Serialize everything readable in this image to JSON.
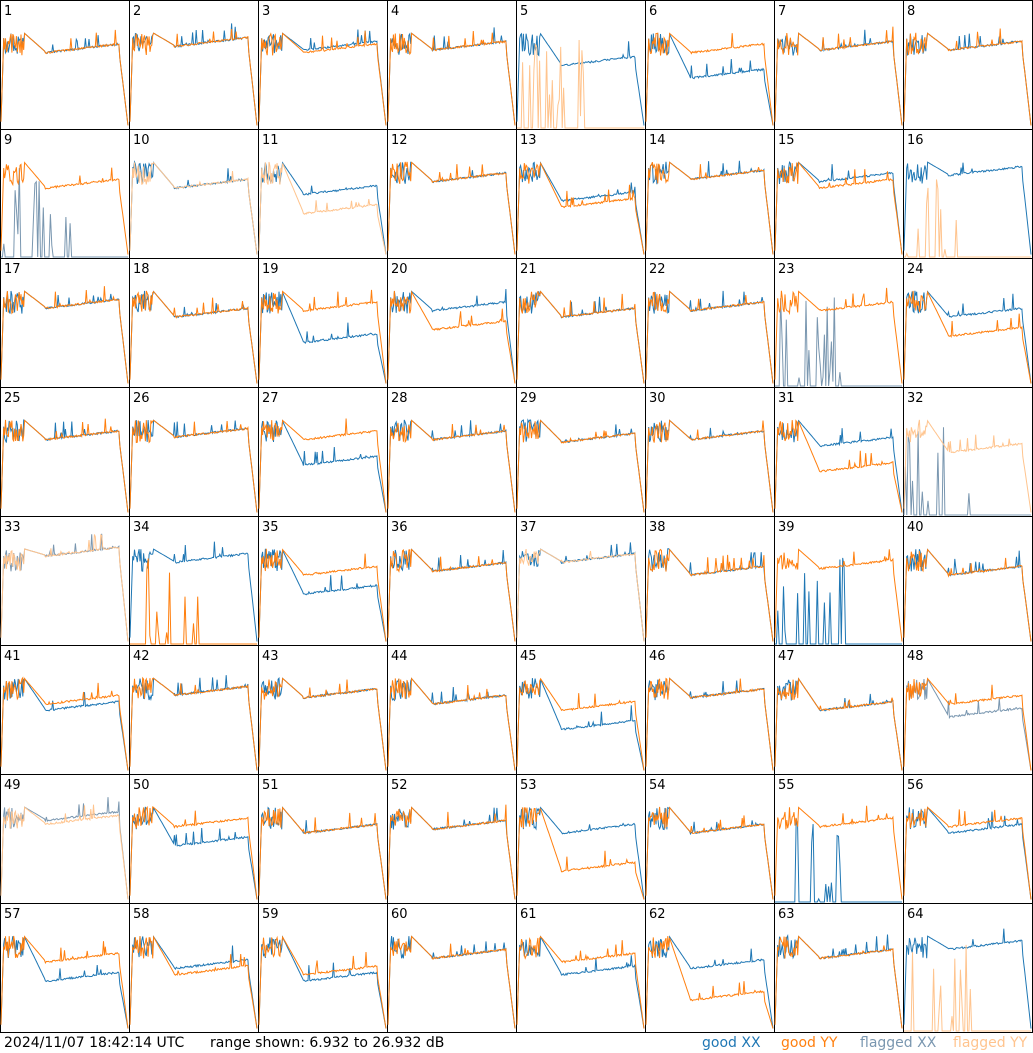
{
  "footer": {
    "timestamp": "2024/11/07 18:42:14 UTC",
    "range": "range shown: 6.932 to 26.932 dB",
    "legend": {
      "good_xx": "good XX",
      "good_yy": "good YY",
      "flagged_xx": "flagged XX",
      "flagged_yy": "flagged YY"
    }
  },
  "colors": {
    "good_xx": "#1f77b4",
    "good_yy": "#ff7f0e",
    "flagged_xx": "#7a97b0",
    "flagged_yy": "#ffc48e"
  },
  "chart_data": {
    "type": "line",
    "grid": {
      "rows": 8,
      "cols": 8
    },
    "ylim": [
      6.932,
      26.932
    ],
    "yunit": "dB",
    "series_names": [
      "good XX",
      "good YY",
      "flagged XX",
      "flagged YY"
    ],
    "panels": [
      {
        "label": "1",
        "xx": "good",
        "yy": "good",
        "xx_level": 0.4,
        "yy_level": 0.4
      },
      {
        "label": "2",
        "xx": "good",
        "yy": "good",
        "xx_level": 0.35,
        "yy_level": 0.35
      },
      {
        "label": "3",
        "xx": "good",
        "yy": "good",
        "xx_level": 0.38,
        "yy_level": 0.4
      },
      {
        "label": "4",
        "xx": "good",
        "yy": "good",
        "xx_level": 0.38,
        "yy_level": 0.38
      },
      {
        "label": "5",
        "xx": "good",
        "yy": "flagged",
        "xx_level": 0.5,
        "yy_level": 0.0
      },
      {
        "label": "6",
        "xx": "good",
        "yy": "good",
        "xx_level": 0.6,
        "yy_level": 0.4
      },
      {
        "label": "7",
        "xx": "good",
        "yy": "good",
        "xx_level": 0.38,
        "yy_level": 0.38
      },
      {
        "label": "8",
        "xx": "good",
        "yy": "good",
        "xx_level": 0.38,
        "yy_level": 0.38
      },
      {
        "label": "9",
        "xx": "flagged",
        "yy": "good",
        "xx_level": 0.0,
        "yy_level": 0.45
      },
      {
        "label": "10",
        "xx": "good",
        "yy": "flagged",
        "xx_level": 0.45,
        "yy_level": 0.45
      },
      {
        "label": "11",
        "xx": "good",
        "yy": "flagged",
        "xx_level": 0.5,
        "yy_level": 0.65
      },
      {
        "label": "12",
        "xx": "good",
        "yy": "good",
        "xx_level": 0.4,
        "yy_level": 0.4
      },
      {
        "label": "13",
        "xx": "good",
        "yy": "good",
        "xx_level": 0.55,
        "yy_level": 0.6
      },
      {
        "label": "14",
        "xx": "good",
        "yy": "good",
        "xx_level": 0.38,
        "yy_level": 0.38
      },
      {
        "label": "15",
        "xx": "good",
        "yy": "good",
        "xx_level": 0.4,
        "yy_level": 0.45
      },
      {
        "label": "16",
        "xx": "good",
        "yy": "flagged",
        "xx_level": 0.35,
        "yy_level": 0.0
      },
      {
        "label": "17",
        "xx": "good",
        "yy": "good",
        "xx_level": 0.38,
        "yy_level": 0.38
      },
      {
        "label": "18",
        "xx": "good",
        "yy": "good",
        "xx_level": 0.45,
        "yy_level": 0.45
      },
      {
        "label": "19",
        "xx": "good",
        "yy": "good",
        "xx_level": 0.65,
        "yy_level": 0.4
      },
      {
        "label": "20",
        "xx": "good",
        "yy": "good",
        "xx_level": 0.4,
        "yy_level": 0.55
      },
      {
        "label": "21",
        "xx": "good",
        "yy": "good",
        "xx_level": 0.45,
        "yy_level": 0.45
      },
      {
        "label": "22",
        "xx": "good",
        "yy": "good",
        "xx_level": 0.4,
        "yy_level": 0.4
      },
      {
        "label": "23",
        "xx": "flagged",
        "yy": "good",
        "xx_level": 0.0,
        "yy_level": 0.4
      },
      {
        "label": "24",
        "xx": "good",
        "yy": "good",
        "xx_level": 0.45,
        "yy_level": 0.6
      },
      {
        "label": "25",
        "xx": "good",
        "yy": "good",
        "xx_level": 0.4,
        "yy_level": 0.4
      },
      {
        "label": "26",
        "xx": "good",
        "yy": "good",
        "xx_level": 0.38,
        "yy_level": 0.38
      },
      {
        "label": "27",
        "xx": "good",
        "yy": "good",
        "xx_level": 0.6,
        "yy_level": 0.4
      },
      {
        "label": "28",
        "xx": "good",
        "yy": "good",
        "xx_level": 0.4,
        "yy_level": 0.4
      },
      {
        "label": "29",
        "xx": "good",
        "yy": "good",
        "xx_level": 0.42,
        "yy_level": 0.42
      },
      {
        "label": "30",
        "xx": "good",
        "yy": "good",
        "xx_level": 0.4,
        "yy_level": 0.4
      },
      {
        "label": "31",
        "xx": "good",
        "yy": "good",
        "xx_level": 0.45,
        "yy_level": 0.65
      },
      {
        "label": "32",
        "xx": "flagged",
        "yy": "flagged",
        "xx_level": 0.0,
        "yy_level": 0.5
      },
      {
        "label": "33",
        "xx": "flagged",
        "yy": "flagged",
        "xx_level": 0.3,
        "yy_level": 0.3
      },
      {
        "label": "34",
        "xx": "good",
        "yy": "good",
        "xx_level": 0.35,
        "yy_level": 0.0
      },
      {
        "label": "35",
        "xx": "good",
        "yy": "good",
        "xx_level": 0.6,
        "yy_level": 0.45
      },
      {
        "label": "36",
        "xx": "good",
        "yy": "good",
        "xx_level": 0.42,
        "yy_level": 0.42
      },
      {
        "label": "37",
        "xx": "good",
        "yy": "flagged",
        "xx_level": 0.35,
        "yy_level": 0.35
      },
      {
        "label": "38",
        "xx": "good",
        "yy": "good",
        "xx_level": 0.45,
        "yy_level": 0.45
      },
      {
        "label": "39",
        "xx": "good",
        "yy": "good",
        "xx_level": 0.0,
        "yy_level": 0.4
      },
      {
        "label": "40",
        "xx": "good",
        "yy": "good",
        "xx_level": 0.45,
        "yy_level": 0.45
      },
      {
        "label": "41",
        "xx": "good",
        "yy": "good",
        "xx_level": 0.5,
        "yy_level": 0.45
      },
      {
        "label": "42",
        "xx": "good",
        "yy": "good",
        "xx_level": 0.38,
        "yy_level": 0.38
      },
      {
        "label": "43",
        "xx": "good",
        "yy": "good",
        "xx_level": 0.4,
        "yy_level": 0.4
      },
      {
        "label": "44",
        "xx": "good",
        "yy": "good",
        "xx_level": 0.45,
        "yy_level": 0.45
      },
      {
        "label": "45",
        "xx": "good",
        "yy": "good",
        "xx_level": 0.65,
        "yy_level": 0.5
      },
      {
        "label": "46",
        "xx": "good",
        "yy": "good",
        "xx_level": 0.4,
        "yy_level": 0.4
      },
      {
        "label": "47",
        "xx": "good",
        "yy": "good",
        "xx_level": 0.5,
        "yy_level": 0.5
      },
      {
        "label": "48",
        "xx": "flagged",
        "yy": "good",
        "xx_level": 0.55,
        "yy_level": 0.45
      },
      {
        "label": "49",
        "xx": "flagged",
        "yy": "flagged",
        "xx_level": 0.35,
        "yy_level": 0.38
      },
      {
        "label": "50",
        "xx": "good",
        "yy": "good",
        "xx_level": 0.55,
        "yy_level": 0.4
      },
      {
        "label": "51",
        "xx": "good",
        "yy": "good",
        "xx_level": 0.45,
        "yy_level": 0.45
      },
      {
        "label": "52",
        "xx": "good",
        "yy": "good",
        "xx_level": 0.42,
        "yy_level": 0.42
      },
      {
        "label": "53",
        "xx": "good",
        "yy": "good",
        "xx_level": 0.45,
        "yy_level": 0.75
      },
      {
        "label": "54",
        "xx": "good",
        "yy": "good",
        "xx_level": 0.45,
        "yy_level": 0.45
      },
      {
        "label": "55",
        "xx": "good",
        "yy": "good",
        "xx_level": 0.0,
        "yy_level": 0.4
      },
      {
        "label": "56",
        "xx": "good",
        "yy": "good",
        "xx_level": 0.45,
        "yy_level": 0.4
      },
      {
        "label": "57",
        "xx": "good",
        "yy": "good",
        "xx_level": 0.6,
        "yy_level": 0.45
      },
      {
        "label": "58",
        "xx": "good",
        "yy": "good",
        "xx_level": 0.5,
        "yy_level": 0.55
      },
      {
        "label": "59",
        "xx": "good",
        "yy": "good",
        "xx_level": 0.6,
        "yy_level": 0.55
      },
      {
        "label": "60",
        "xx": "good",
        "yy": "good",
        "xx_level": 0.42,
        "yy_level": 0.42
      },
      {
        "label": "61",
        "xx": "good",
        "yy": "good",
        "xx_level": 0.55,
        "yy_level": 0.45
      },
      {
        "label": "62",
        "xx": "good",
        "yy": "good",
        "xx_level": 0.5,
        "yy_level": 0.75
      },
      {
        "label": "63",
        "xx": "good",
        "yy": "good",
        "xx_level": 0.42,
        "yy_level": 0.42
      },
      {
        "label": "64",
        "xx": "good",
        "yy": "flagged",
        "xx_level": 0.35,
        "yy_level": 0.0
      }
    ]
  }
}
